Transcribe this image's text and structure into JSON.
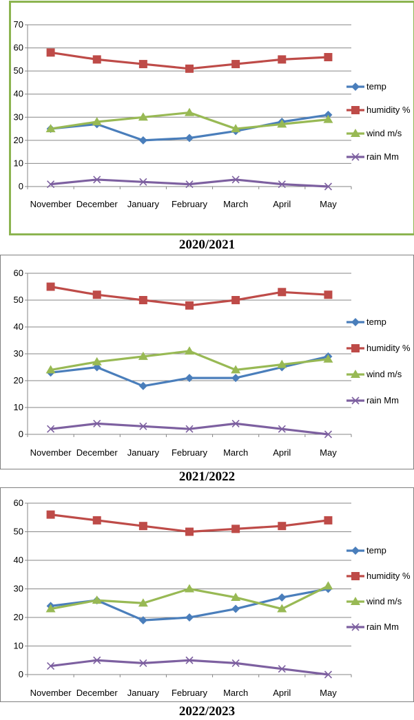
{
  "chart_data": [
    {
      "type": "line",
      "caption": "2020/2021",
      "categories": [
        "November",
        "December",
        "January",
        "February",
        "March",
        "April",
        "May"
      ],
      "ylim": [
        0,
        70
      ],
      "yticks": [
        "0",
        "10",
        "20",
        "30",
        "40",
        "50",
        "60",
        "70"
      ],
      "grid": true,
      "legend": "right",
      "series": [
        {
          "name": "temp",
          "color": "#4a7ebb",
          "marker": "diamond",
          "values": [
            25,
            27,
            20,
            21,
            24,
            28,
            31
          ]
        },
        {
          "name": "humidity %",
          "color": "#be4b48",
          "marker": "square",
          "values": [
            58,
            55,
            53,
            51,
            53,
            55,
            56
          ]
        },
        {
          "name": "wind m/s",
          "color": "#98b954",
          "marker": "triangle",
          "values": [
            25,
            28,
            30,
            32,
            25,
            27,
            29
          ]
        },
        {
          "name": "rain Mm",
          "color": "#7d60a0",
          "marker": "x",
          "values": [
            1,
            3,
            2,
            1,
            3,
            1,
            0
          ]
        }
      ]
    },
    {
      "type": "line",
      "caption": "2021/2022",
      "categories": [
        "November",
        "December",
        "January",
        "February",
        "March",
        "April",
        "May"
      ],
      "ylim": [
        0,
        60
      ],
      "yticks": [
        "0",
        "10",
        "20",
        "30",
        "40",
        "50",
        "60"
      ],
      "grid": true,
      "legend": "right",
      "series": [
        {
          "name": "temp",
          "color": "#4a7ebb",
          "marker": "diamond",
          "values": [
            23,
            25,
            18,
            21,
            21,
            25,
            29
          ]
        },
        {
          "name": "humidity %",
          "color": "#be4b48",
          "marker": "square",
          "values": [
            55,
            52,
            50,
            48,
            50,
            53,
            52
          ]
        },
        {
          "name": "wind m/s",
          "color": "#98b954",
          "marker": "triangle",
          "values": [
            24,
            27,
            29,
            31,
            24,
            26,
            28
          ]
        },
        {
          "name": "rain Mm",
          "color": "#7d60a0",
          "marker": "x",
          "values": [
            2,
            4,
            3,
            2,
            4,
            2,
            0
          ]
        }
      ]
    },
    {
      "type": "line",
      "caption": "2022/2023",
      "categories": [
        "November",
        "December",
        "January",
        "February",
        "March",
        "April",
        "May"
      ],
      "ylim": [
        0,
        60
      ],
      "yticks": [
        "0",
        "10",
        "20",
        "30",
        "40",
        "50",
        "60"
      ],
      "grid": true,
      "legend": "right",
      "series": [
        {
          "name": "temp",
          "color": "#4a7ebb",
          "marker": "diamond",
          "values": [
            24,
            26,
            19,
            20,
            23,
            27,
            30
          ]
        },
        {
          "name": "humidity %",
          "color": "#be4b48",
          "marker": "square",
          "values": [
            56,
            54,
            52,
            50,
            51,
            52,
            54
          ]
        },
        {
          "name": "wind m/s",
          "color": "#98b954",
          "marker": "triangle",
          "values": [
            23,
            26,
            25,
            30,
            27,
            23,
            31
          ]
        },
        {
          "name": "rain Mm",
          "color": "#7d60a0",
          "marker": "x",
          "values": [
            3,
            5,
            4,
            5,
            4,
            2,
            0
          ]
        }
      ]
    }
  ]
}
